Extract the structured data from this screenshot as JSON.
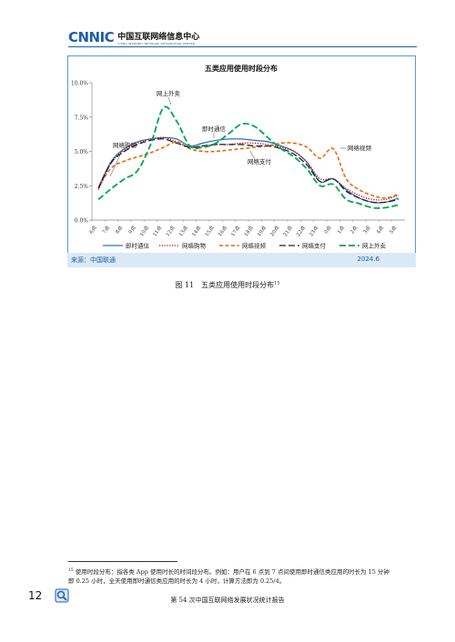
{
  "header": {
    "logo": "CNNIC",
    "org_cn": "中国互联网络信息中心",
    "org_en": "CHINA INTERNET NETWORK INFORMATION CENTER"
  },
  "colors": {
    "brand": "#1f5fa8",
    "frame": "#5b9bd5",
    "source_bg": "#dbe8f6"
  },
  "chart_data": {
    "type": "line",
    "title": "五类应用使用时段分布",
    "categories": [
      "6点",
      "7点",
      "8点",
      "9点",
      "10点",
      "11点",
      "12点",
      "13点",
      "14点",
      "15点",
      "16点",
      "17点",
      "18点",
      "19点",
      "20点",
      "21点",
      "22点",
      "23点",
      "0点",
      "1点",
      "2点",
      "3点",
      "4点",
      "5点"
    ],
    "ylim": [
      0,
      10
    ],
    "y_ticks": [
      "0.0%",
      "2.5%",
      "5.0%",
      "7.5%",
      "10.0%"
    ],
    "grid": false,
    "legend_position": "bottom",
    "series": [
      {
        "name": "即时通信",
        "color": "#2e75b6",
        "dash": "solid",
        "values": [
          2.4,
          4.3,
          5.2,
          5.7,
          5.9,
          6.0,
          5.9,
          5.4,
          5.6,
          5.8,
          5.9,
          5.9,
          5.8,
          5.7,
          5.4,
          5.0,
          4.2,
          2.8,
          3.0,
          2.2,
          1.6,
          1.3,
          1.3,
          1.6
        ]
      },
      {
        "name": "网络购物",
        "color": "#c00000",
        "dash": "dotted",
        "values": [
          2.2,
          4.2,
          5.1,
          5.6,
          5.9,
          6.0,
          5.7,
          5.3,
          5.4,
          5.5,
          5.5,
          5.6,
          5.6,
          5.5,
          5.3,
          5.0,
          4.2,
          3.0,
          3.0,
          2.3,
          1.8,
          1.5,
          1.5,
          1.8
        ]
      },
      {
        "name": "网络视频",
        "color": "#e46c0a",
        "dash": "dashed",
        "values": [
          2.4,
          3.8,
          4.3,
          4.6,
          4.9,
          5.3,
          5.7,
          5.2,
          5.0,
          5.0,
          5.1,
          5.2,
          5.3,
          5.4,
          5.6,
          5.6,
          5.3,
          4.5,
          5.2,
          3.0,
          2.2,
          1.8,
          1.6,
          1.9
        ]
      },
      {
        "name": "网络支付",
        "color": "#1f1f3a",
        "dash": "longdash",
        "values": [
          2.3,
          4.2,
          5.0,
          5.5,
          5.8,
          5.9,
          5.6,
          5.3,
          5.4,
          5.5,
          5.5,
          5.5,
          5.4,
          5.4,
          5.2,
          4.8,
          4.0,
          2.8,
          3.0,
          2.1,
          1.6,
          1.3,
          1.3,
          1.5
        ]
      },
      {
        "name": "网上外卖",
        "color": "#00a550",
        "dash": "longdash",
        "values": [
          1.5,
          2.3,
          3.0,
          3.6,
          5.5,
          8.2,
          7.2,
          5.4,
          5.3,
          5.6,
          6.3,
          7.0,
          6.8,
          6.0,
          5.2,
          4.6,
          3.7,
          2.5,
          2.6,
          1.5,
          1.2,
          0.9,
          0.9,
          1.1
        ]
      }
    ],
    "annotations": [
      {
        "text": "网上外卖"
      },
      {
        "text": "即时通信"
      },
      {
        "text": "网络购物"
      },
      {
        "text": "网络视频"
      },
      {
        "text": "网络支付"
      }
    ]
  },
  "source": {
    "label": "来源：中国联通",
    "date": "2024.6"
  },
  "caption": {
    "text": "图 11　五类应用使用时段分布",
    "note_ref": "15"
  },
  "footnote": {
    "ref": "15",
    "text": "使用时段分布：指各类 App 使用时长的时间段分布。例如：用户在 6 点到 7 点间使用即时通信类应用的时长为 15 分钟即 0.25 小时，全天使用即时通信类应用的时长为 4 小时，计算方法即为 0.25/4。"
  },
  "footer": {
    "page_number": "12",
    "report": "第 54 次中国互联网络发展状况统计报告"
  }
}
